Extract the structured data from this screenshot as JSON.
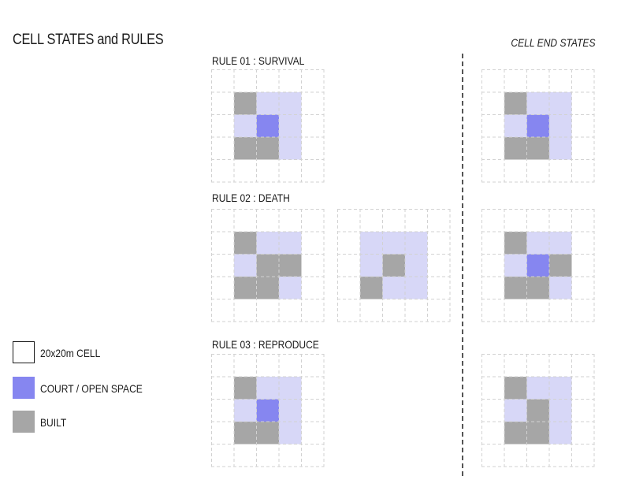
{
  "title": "CELL STATES and RULES",
  "end_states_title": "CELL END STATES",
  "colors": {
    "court": "#8686f0",
    "light": "#d7d7f7",
    "built": "#a6a6a6",
    "grid_line": "#d2d2d2",
    "empty_swatch_border": "#1a1a1a",
    "divider": "#555555"
  },
  "rules": [
    {
      "label": "RULE 01 : SURVIVAL"
    },
    {
      "label": "RULE 02 : DEATH"
    },
    {
      "label": "RULE 03 : REPRODUCE"
    }
  ],
  "grids": {
    "rule1": [
      ".....",
      ".GLL.",
      ".LCL.",
      ".GGL.",
      "....."
    ],
    "rule2a": [
      ".....",
      ".GLL.",
      ".LGG.",
      ".GGL.",
      "....."
    ],
    "rule2b": [
      ".....",
      ".LLL.",
      ".LGL.",
      ".GLL.",
      "....."
    ],
    "rule3": [
      ".....",
      ".GLL.",
      ".LCL.",
      ".GGL.",
      "....."
    ],
    "end1": [
      ".....",
      ".GLL.",
      ".LCL.",
      ".GGL.",
      "....."
    ],
    "end2": [
      ".....",
      ".GLL.",
      ".LCG.",
      ".GGL.",
      "....."
    ],
    "end3": [
      ".....",
      ".GLL.",
      ".LGL.",
      ".GGL.",
      "....."
    ]
  },
  "legend": [
    {
      "label": "20x20m CELL",
      "type": "empty"
    },
    {
      "label": "COURT / OPEN SPACE",
      "type": "court"
    },
    {
      "label": "BUILT",
      "type": "built"
    }
  ]
}
